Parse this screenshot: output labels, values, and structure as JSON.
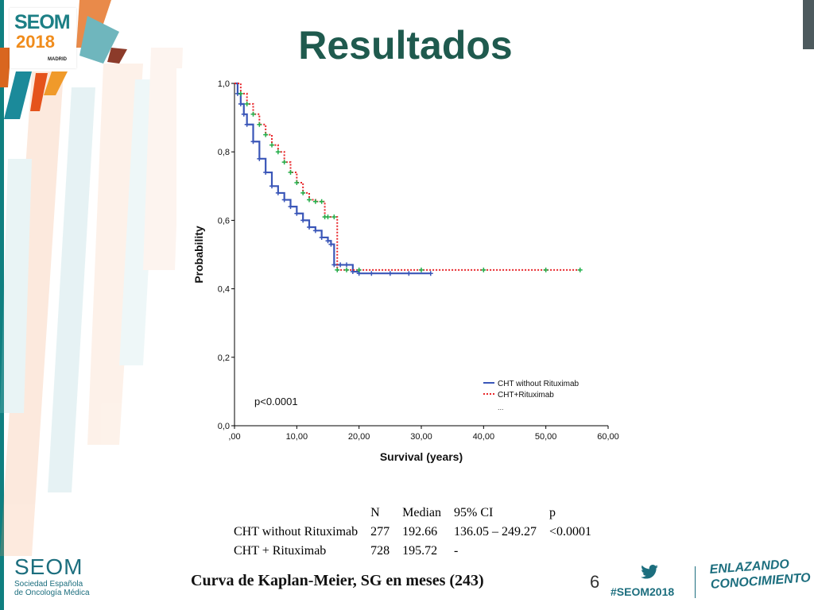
{
  "slide": {
    "title": "Resultados",
    "caption": "Curva de Kaplan-Meier, SG en meses (243)",
    "page_number": "6"
  },
  "logo": {
    "brand": "SEOM",
    "year": "2018",
    "city": "MADRID"
  },
  "footer": {
    "seom_name": "SEOM",
    "seom_line1": "Sociedad Española",
    "seom_line2": "de Oncología Médica",
    "hashtag": "#SEOM2018",
    "slogan_line1": "ENLAZANDO",
    "slogan_line2": "CONOCIMIENTO"
  },
  "colors": {
    "accent": "#0f7f80",
    "title": "#1f5a4e",
    "cht_line": "#3a56b8",
    "ritux_censor": "#22b14c",
    "ritux_line": "#e8262a"
  },
  "table": {
    "headers": [
      "",
      "N",
      "Median",
      "95% CI",
      "p"
    ],
    "rows": [
      [
        "CHT without Rituximab",
        "277",
        "192.66",
        "136.05 – 249.27",
        "<0.0001"
      ],
      [
        "CHT + Rituximab",
        "728",
        "195.72",
        "-",
        ""
      ]
    ]
  },
  "chart_data": {
    "type": "line",
    "title": "",
    "xlabel": "Survival (years)",
    "ylabel": "Probability",
    "xlim": [
      0,
      60
    ],
    "ylim": [
      0,
      1
    ],
    "x_ticks": [
      ",00",
      "10,00",
      "20,00",
      "30,00",
      "40,00",
      "50,00",
      "60,00"
    ],
    "y_ticks": [
      "0,0",
      "0,2",
      "0,4",
      "0,6",
      "0,8",
      "1,0"
    ],
    "annotation": "p<0.0001",
    "legend_position": "bottom-right",
    "legend_extra": "...",
    "series": [
      {
        "name": "CHT without Rituximab",
        "color": "#3a56b8",
        "style": "solid",
        "x": [
          0,
          0.5,
          1,
          1.5,
          2,
          3,
          4,
          5,
          6,
          7,
          8,
          9,
          10,
          11,
          12,
          13,
          14,
          15,
          15.5,
          16,
          17,
          18,
          19,
          20,
          22,
          25,
          28,
          31.5
        ],
        "y": [
          1.0,
          0.97,
          0.94,
          0.91,
          0.88,
          0.83,
          0.78,
          0.74,
          0.7,
          0.68,
          0.66,
          0.64,
          0.62,
          0.6,
          0.58,
          0.57,
          0.55,
          0.54,
          0.53,
          0.47,
          0.47,
          0.47,
          0.45,
          0.445,
          0.445,
          0.445,
          0.445,
          0.445
        ]
      },
      {
        "name": "CHT+Rituximab",
        "color": "#e8262a",
        "censor_color": "#22b14c",
        "style": "dotted",
        "x": [
          0,
          1,
          2,
          3,
          4,
          5,
          6,
          7,
          8,
          9,
          10,
          11,
          12,
          13,
          14,
          14.5,
          15,
          16,
          16.5,
          18,
          20,
          30,
          40,
          50,
          55.5
        ],
        "y": [
          1.0,
          0.97,
          0.94,
          0.91,
          0.88,
          0.85,
          0.82,
          0.8,
          0.77,
          0.74,
          0.71,
          0.68,
          0.66,
          0.655,
          0.655,
          0.61,
          0.61,
          0.61,
          0.455,
          0.455,
          0.455,
          0.455,
          0.455,
          0.455,
          0.455
        ]
      }
    ]
  }
}
